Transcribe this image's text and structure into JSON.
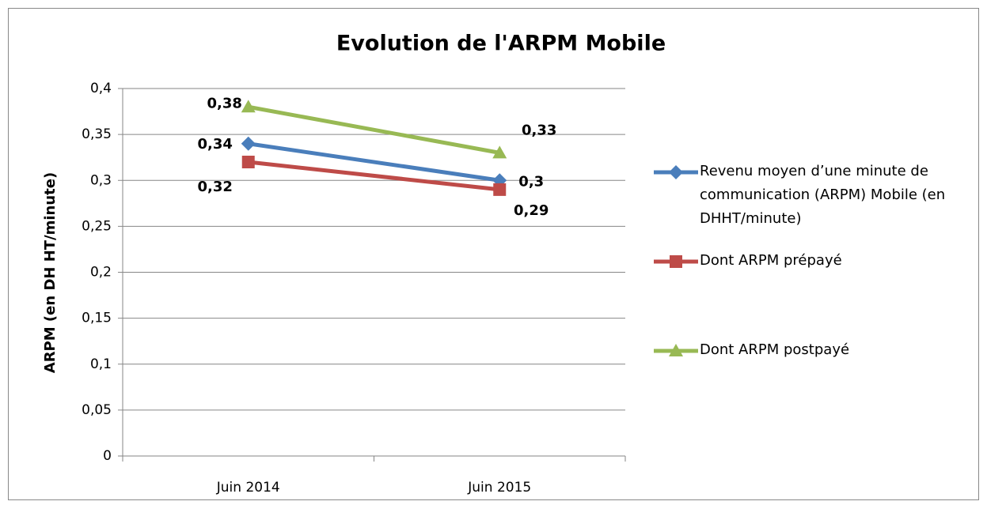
{
  "chart_data": {
    "type": "line",
    "title": "Evolution de l'ARPM Mobile",
    "y_label": "ARPM (en DH HT/minute)",
    "categories": [
      "Juin 2014",
      "Juin 2015"
    ],
    "series": [
      {
        "name": "Revenu moyen d’une minute de communication (ARPM) Mobile (en DHHT/minute)",
        "color": "#4a7ebb",
        "marker": "diamond",
        "values": [
          0.34,
          0.3
        ],
        "value_labels": [
          "0,34",
          "0,3"
        ]
      },
      {
        "name": "Dont ARPM prépayé",
        "color": "#be4b48",
        "marker": "square",
        "values": [
          0.32,
          0.29
        ],
        "value_labels": [
          "0,32",
          "0,29"
        ]
      },
      {
        "name": "Dont ARPM postpayé",
        "color": "#98b954",
        "marker": "triangle",
        "values": [
          0.38,
          0.33
        ],
        "value_labels": [
          "0,38",
          "0,33"
        ]
      }
    ],
    "ylim": [
      0,
      0.4
    ],
    "yticks": [
      {
        "value": 0,
        "label": "0"
      },
      {
        "value": 0.05,
        "label": "0,05"
      },
      {
        "value": 0.1,
        "label": "0,1"
      },
      {
        "value": 0.15,
        "label": "0,15"
      },
      {
        "value": 0.2,
        "label": "0,2"
      },
      {
        "value": 0.25,
        "label": "0,25"
      },
      {
        "value": 0.3,
        "label": "0,3"
      },
      {
        "value": 0.35,
        "label": "0,35"
      },
      {
        "value": 0.4,
        "label": "0,4"
      }
    ],
    "grid": true,
    "legend": "right"
  }
}
